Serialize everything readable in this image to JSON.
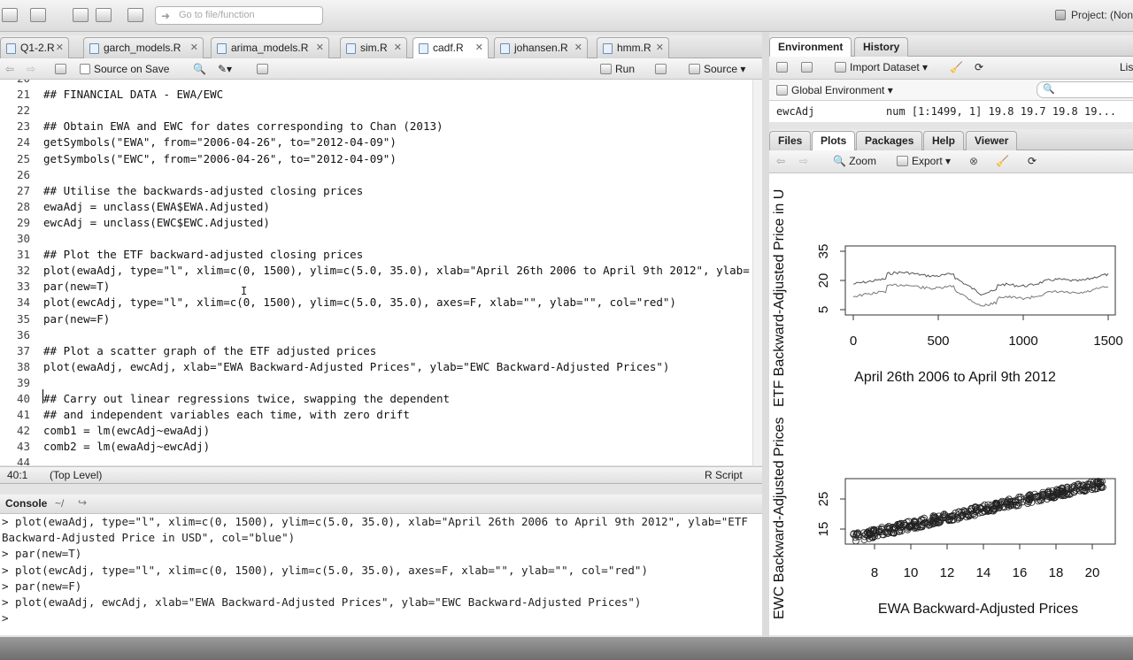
{
  "global_toolbar": {
    "goto_placeholder": "Go to file/function",
    "project_label": "Project: (Non"
  },
  "editor": {
    "tabs": [
      {
        "label": "Q1-2.R",
        "active": false
      },
      {
        "label": "garch_models.R",
        "active": false
      },
      {
        "label": "arima_models.R",
        "active": false
      },
      {
        "label": "sim.R",
        "active": false
      },
      {
        "label": "cadf.R",
        "active": true
      },
      {
        "label": "johansen.R",
        "active": false
      },
      {
        "label": "hmm.R",
        "active": false
      }
    ],
    "toolbar": {
      "source_on_save": "Source on Save",
      "run": "Run",
      "source": "Source"
    },
    "lines": [
      {
        "n": "20",
        "code": ""
      },
      {
        "n": "21",
        "code": "## FINANCIAL DATA - EWA/EWC"
      },
      {
        "n": "22",
        "code": ""
      },
      {
        "n": "23",
        "code": "## Obtain EWA and EWC for dates corresponding to Chan (2013)"
      },
      {
        "n": "24",
        "code": "getSymbols(\"EWA\", from=\"2006-04-26\", to=\"2012-04-09\")"
      },
      {
        "n": "25",
        "code": "getSymbols(\"EWC\", from=\"2006-04-26\", to=\"2012-04-09\")"
      },
      {
        "n": "26",
        "code": ""
      },
      {
        "n": "27",
        "code": "## Utilise the backwards-adjusted closing prices"
      },
      {
        "n": "28",
        "code": "ewaAdj = unclass(EWA$EWA.Adjusted)"
      },
      {
        "n": "29",
        "code": "ewcAdj = unclass(EWC$EWC.Adjusted)"
      },
      {
        "n": "30",
        "code": ""
      },
      {
        "n": "31",
        "code": "## Plot the ETF backward-adjusted closing prices"
      },
      {
        "n": "32",
        "code": "plot(ewaAdj, type=\"l\", xlim=c(0, 1500), ylim=c(5.0, 35.0), xlab=\"April 26th 2006 to April 9th 2012\", ylab="
      },
      {
        "n": "33",
        "code": "par(new=T)"
      },
      {
        "n": "34",
        "code": "plot(ewcAdj, type=\"l\", xlim=c(0, 1500), ylim=c(5.0, 35.0), axes=F, xlab=\"\", ylab=\"\", col=\"red\")"
      },
      {
        "n": "35",
        "code": "par(new=F)"
      },
      {
        "n": "36",
        "code": ""
      },
      {
        "n": "37",
        "code": "## Plot a scatter graph of the ETF adjusted prices"
      },
      {
        "n": "38",
        "code": "plot(ewaAdj, ewcAdj, xlab=\"EWA Backward-Adjusted Prices\", ylab=\"EWC Backward-Adjusted Prices\")"
      },
      {
        "n": "39",
        "code": ""
      },
      {
        "n": "40",
        "code": "## Carry out linear regressions twice, swapping the dependent"
      },
      {
        "n": "41",
        "code": "## and independent variables each time, with zero drift"
      },
      {
        "n": "42",
        "code": "comb1 = lm(ewcAdj~ewaAdj)"
      },
      {
        "n": "43",
        "code": "comb2 = lm(ewaAdj~ewcAdj)"
      },
      {
        "n": "44",
        "code": ""
      }
    ],
    "status": {
      "position": "40:1",
      "scope": "(Top Level)",
      "type": "R Script"
    }
  },
  "console": {
    "title": "Console",
    "path": "~/",
    "lines": [
      "> plot(ewaAdj, type=\"l\", xlim=c(0, 1500), ylim=c(5.0, 35.0), xlab=\"April 26th 2006 to April 9th 2012\", ylab=\"ETF",
      "Backward-Adjusted Price in USD\", col=\"blue\")",
      "> par(new=T)",
      "> plot(ewcAdj, type=\"l\", xlim=c(0, 1500), ylim=c(5.0, 35.0), axes=F, xlab=\"\", ylab=\"\", col=\"red\")",
      "> par(new=F)",
      "> plot(ewaAdj, ewcAdj, xlab=\"EWA Backward-Adjusted Prices\", ylab=\"EWC Backward-Adjusted Prices\")",
      ">"
    ]
  },
  "environment": {
    "tabs": [
      "Environment",
      "History"
    ],
    "import_dataset": "Import Dataset",
    "list_label": "Lis",
    "scope": "Global Environment",
    "variable": {
      "name": "ewcAdj",
      "value": "num [1:1499, 1] 19.8 19.7 19.8 19..."
    }
  },
  "plots_pane": {
    "tabs": [
      "Files",
      "Plots",
      "Packages",
      "Help",
      "Viewer"
    ],
    "zoom": "Zoom",
    "export": "Export"
  },
  "plot_labels": {
    "line_chart": {
      "ylabel_partial": "ETF Backward-Adjusted Price in U",
      "xlabel": "April 26th 2006 to April 9th 2012",
      "yticks": [
        "5",
        "20",
        "35"
      ],
      "xticks": [
        "0",
        "500",
        "1000",
        "1500"
      ]
    },
    "scatter": {
      "ylabel": "EWC Backward-Adjusted Prices",
      "xlabel": "EWA Backward-Adjusted Prices",
      "yticks": [
        "15",
        "25"
      ],
      "xticks": [
        "8",
        "10",
        "12",
        "14",
        "16",
        "18",
        "20"
      ]
    }
  }
}
